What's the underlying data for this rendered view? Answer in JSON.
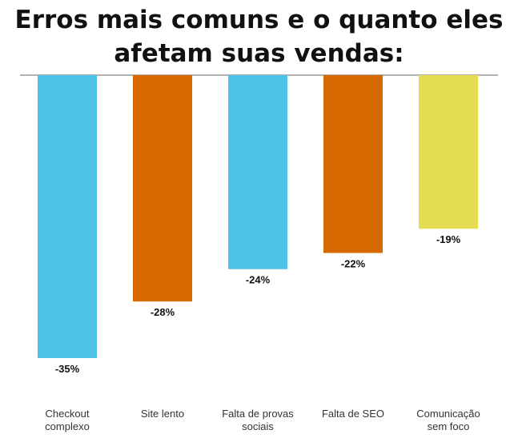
{
  "chart_data": {
    "type": "bar",
    "title_lines": [
      "Erros mais comuns e o quanto eles",
      "afetam suas vendas:"
    ],
    "categories": [
      [
        "Checkout",
        "complexo"
      ],
      [
        "Site lento"
      ],
      [
        "Falta de provas",
        "sociais"
      ],
      [
        "Falta de SEO"
      ],
      [
        "Comunicação",
        "sem foco"
      ]
    ],
    "values": [
      -35,
      -28,
      -24,
      -22,
      -19
    ],
    "value_labels": [
      "-35%",
      "-28%",
      "-24%",
      "-22%",
      "-19%"
    ],
    "colors": [
      "#4fc3e6",
      "#d66a00",
      "#4fc3e6",
      "#d66a00",
      "#e4dd4f"
    ],
    "ylim": [
      -35,
      0
    ],
    "grid": false
  }
}
